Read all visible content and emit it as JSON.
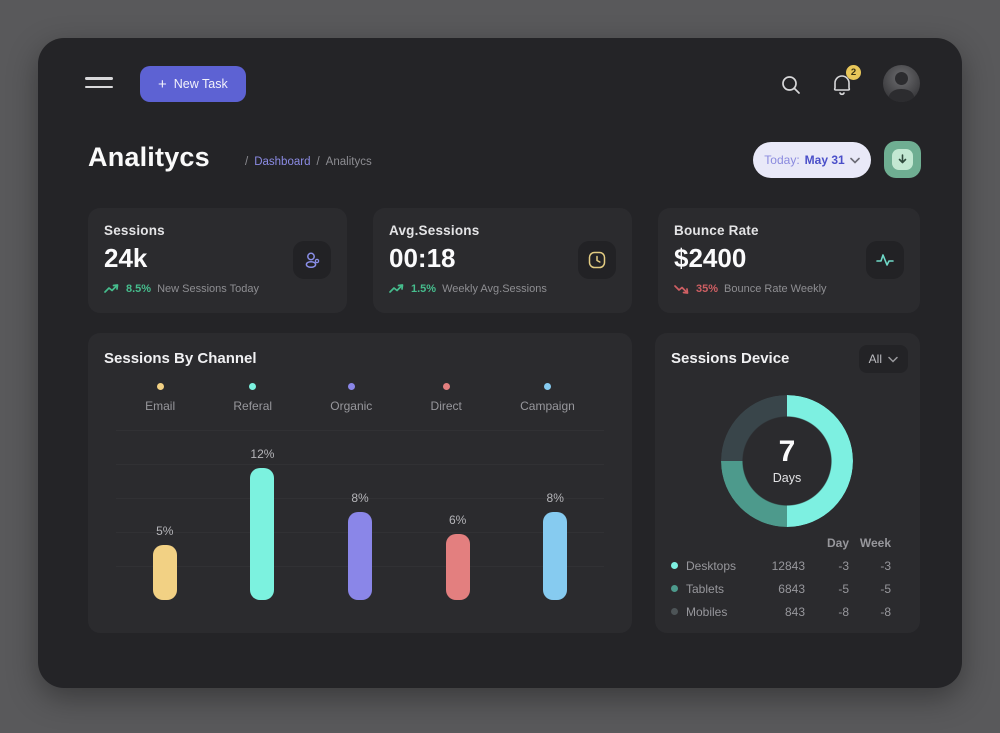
{
  "colors": {
    "accent_purple": "#5d62d3",
    "breadcrumb_link": "#8b8be4",
    "positive_green": "#46bd8d",
    "negative_red": "#cf5f63",
    "badge_yellow": "#e8c75a",
    "download_green": "#6fae92",
    "date_button_bg": "#e9e9f8",
    "app_bg": "#242427",
    "card_bg": "#2b2b2e"
  },
  "topbar": {
    "new_task": {
      "plus_glyph": "+",
      "label": "New Task"
    },
    "notifications_badge": "2"
  },
  "header": {
    "title": "Analitycs",
    "breadcrumb": {
      "sep1": "/",
      "link": "Dashboard",
      "sep2": "/",
      "current": "Analitycs"
    },
    "date_filter": {
      "prefix": "Today:",
      "value": "May 31"
    }
  },
  "stats": [
    {
      "title": "Sessions",
      "value": "24k",
      "delta": "8.5%",
      "note": "New Sessions Today",
      "trend": "up",
      "icon": "users-icon"
    },
    {
      "title": "Avg.Sessions",
      "value": "00:18",
      "delta": "1.5%",
      "note": "Weekly Avg.Sessions",
      "trend": "up",
      "icon": "clock-icon"
    },
    {
      "title": "Bounce Rate",
      "value": "$2400",
      "delta": "35%",
      "note": "Bounce Rate Weekly",
      "trend": "down",
      "icon": "activity-icon"
    }
  ],
  "chart_data": [
    {
      "type": "bar",
      "title": "Sessions By Channel",
      "categories": [
        "Email",
        "Referal",
        "Organic",
        "Direct",
        "Campaign"
      ],
      "values": [
        5,
        12,
        8,
        6,
        8
      ],
      "labels": [
        "5%",
        "12%",
        "8%",
        "6%",
        "8%"
      ],
      "colors": [
        "#f2d184",
        "#7cf2df",
        "#8a86e8",
        "#e37f7f",
        "#86cbf0"
      ],
      "unit": "%",
      "ylim": [
        0,
        14
      ],
      "grid": true,
      "legend_position": "top"
    },
    {
      "type": "pie",
      "title": "Sessions Device",
      "filter_label": "All",
      "center_value": "7",
      "center_label": "Days",
      "segments": [
        {
          "name": "Desktops",
          "display_pct": 50,
          "color": "#7df0e1"
        },
        {
          "name": "Tablets",
          "display_pct": 25,
          "color": "#4d9a8c"
        },
        {
          "name": "Mobiles",
          "display_pct": 25,
          "color": "#39454a"
        }
      ],
      "table": {
        "columns": [
          "Day",
          "Week"
        ],
        "rows": [
          {
            "name": "Desktops",
            "value": "12843",
            "day": "-3",
            "week": "-3",
            "color": "#7df0e1"
          },
          {
            "name": "Tablets",
            "value": "6843",
            "day": "-5",
            "week": "-5",
            "color": "#4d9a8c"
          },
          {
            "name": "Mobiles",
            "value": "843",
            "day": "-8",
            "week": "-8",
            "color": "#4d5457"
          }
        ]
      }
    }
  ]
}
